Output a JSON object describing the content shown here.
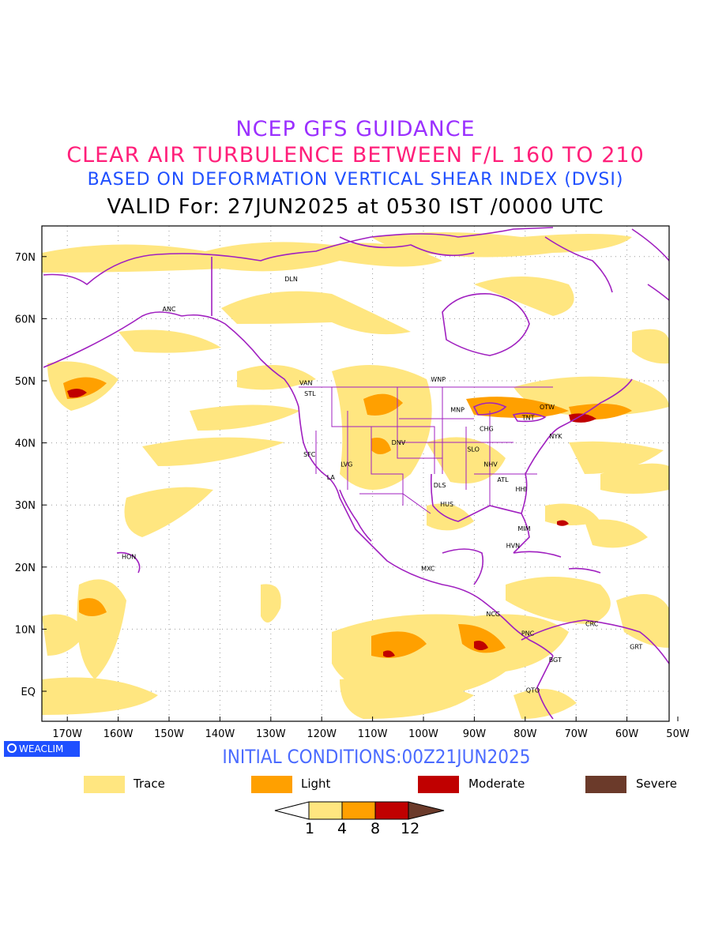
{
  "title": {
    "line1": "NCEP GFS GUIDANCE",
    "line2": "CLEAR AIR TURBULENCE BETWEEN F/L 160 TO 210",
    "line3": "BASED ON DEFORMATION VERTICAL SHEAR INDEX (DVSI)",
    "line4": "VALID For: 27JUN2025 at 0530 IST /0000 UTC"
  },
  "map": {
    "lat_labels": [
      "70N",
      "60N",
      "50N",
      "40N",
      "30N",
      "20N",
      "10N",
      "EQ"
    ],
    "lon_labels": [
      "170W",
      "160W",
      "150W",
      "140W",
      "130W",
      "120W",
      "110W",
      "100W",
      "90W",
      "80W",
      "70W",
      "60W",
      "50W"
    ],
    "stations": [
      {
        "code": "ANC",
        "lon": -150.0,
        "lat": 61.2
      },
      {
        "code": "DLN",
        "lon": -126.0,
        "lat": 66.0
      },
      {
        "code": "VAN",
        "lon": -123.1,
        "lat": 49.3
      },
      {
        "code": "STL",
        "lon": -122.3,
        "lat": 47.6
      },
      {
        "code": "WNP",
        "lon": -97.1,
        "lat": 49.9
      },
      {
        "code": "MNP",
        "lon": -93.3,
        "lat": 45.0
      },
      {
        "code": "OTW",
        "lon": -75.7,
        "lat": 45.4
      },
      {
        "code": "TNT",
        "lon": -79.4,
        "lat": 43.7
      },
      {
        "code": "CHG",
        "lon": -87.6,
        "lat": 41.9
      },
      {
        "code": "NYK",
        "lon": -74.0,
        "lat": 40.7
      },
      {
        "code": "DNV",
        "lon": -104.9,
        "lat": 39.7
      },
      {
        "code": "SFC",
        "lon": -122.4,
        "lat": 37.8
      },
      {
        "code": "LVG",
        "lon": -115.1,
        "lat": 36.2
      },
      {
        "code": "SLO",
        "lon": -90.2,
        "lat": 38.6
      },
      {
        "code": "NHV",
        "lon": -86.8,
        "lat": 36.2
      },
      {
        "code": "LA",
        "lon": -118.2,
        "lat": 34.1
      },
      {
        "code": "ATL",
        "lon": -84.4,
        "lat": 33.7
      },
      {
        "code": "DLS",
        "lon": -96.8,
        "lat": 32.8
      },
      {
        "code": "HHI",
        "lon": -80.8,
        "lat": 32.2
      },
      {
        "code": "HUS",
        "lon": -95.4,
        "lat": 29.8
      },
      {
        "code": "MIM",
        "lon": -80.2,
        "lat": 25.8
      },
      {
        "code": "HVN",
        "lon": -82.4,
        "lat": 23.1
      },
      {
        "code": "HON",
        "lon": -157.9,
        "lat": 21.3
      },
      {
        "code": "MXC",
        "lon": -99.1,
        "lat": 19.4
      },
      {
        "code": "NCG",
        "lon": -86.3,
        "lat": 12.1
      },
      {
        "code": "CRC",
        "lon": -66.9,
        "lat": 10.5
      },
      {
        "code": "PNC",
        "lon": -79.5,
        "lat": 9.0
      },
      {
        "code": "GRT",
        "lon": -58.2,
        "lat": 6.8
      },
      {
        "code": "BGT",
        "lon": -74.1,
        "lat": 4.7
      },
      {
        "code": "QTO",
        "lon": -78.5,
        "lat": -0.2
      }
    ]
  },
  "colors": {
    "trace": "#ffe680",
    "light": "#ffa000",
    "moderate": "#c00000",
    "severe": "#6b3a2a",
    "coast": "#a020c0"
  },
  "badge": "WEACLIM",
  "initial_conditions": "INITIAL CONDITIONS:00Z21JUN2025",
  "legend": [
    {
      "label": "Trace",
      "color": "#ffe680"
    },
    {
      "label": "Light",
      "color": "#ffa000"
    },
    {
      "label": "Moderate",
      "color": "#c00000"
    },
    {
      "label": "Severe",
      "color": "#6b3a2a"
    }
  ],
  "colorbar": {
    "levels": [
      "1",
      "4",
      "8",
      "12"
    ]
  }
}
